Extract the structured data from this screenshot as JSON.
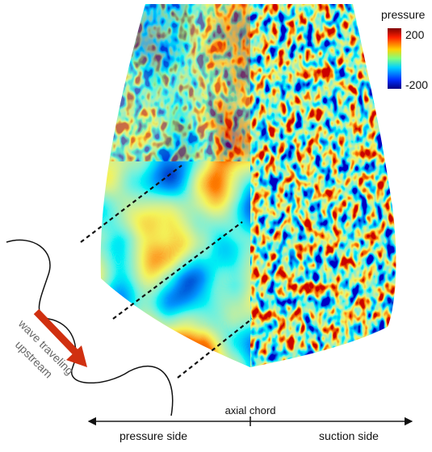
{
  "colorbar": {
    "title": "pressure",
    "max_label": "200",
    "min_label": "-200"
  },
  "annotations": {
    "wave": [
      "wave traveling",
      "upstream"
    ],
    "axis": "axial chord",
    "left_side": "pressure side",
    "right_side": "suction side"
  }
}
